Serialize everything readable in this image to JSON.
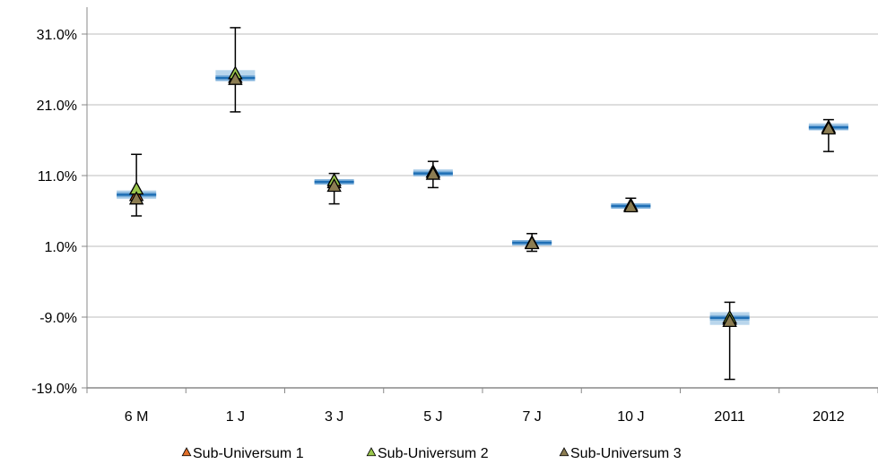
{
  "chart_data": {
    "type": "box",
    "title": "",
    "xlabel": "",
    "ylabel": "",
    "ylim": [
      -19,
      31
    ],
    "yticks": [
      -19,
      -9,
      1,
      11,
      21,
      31
    ],
    "ytick_labels": [
      "-19.0%",
      "-9.0%",
      "1.0%",
      "11.0%",
      "21.0%",
      "31.0%"
    ],
    "grid": true,
    "legend_position": "bottom",
    "categories": [
      "6 M",
      "1 J",
      "3 J",
      "5 J",
      "7 J",
      "10 J",
      "2011",
      "2012"
    ],
    "ranges": [
      {
        "min": 5.3,
        "max": 14.0,
        "box_low": 7.7,
        "box_high": 8.9,
        "median": 8.3
      },
      {
        "min": 20.0,
        "max": 31.9,
        "box_low": 24.3,
        "box_high": 25.9,
        "median": 24.8
      },
      {
        "min": 7.0,
        "max": 11.3,
        "box_low": 9.8,
        "box_high": 10.4,
        "median": 10.1
      },
      {
        "min": 9.3,
        "max": 13.0,
        "box_low": 10.9,
        "box_high": 11.9,
        "median": 11.3
      },
      {
        "min": 0.3,
        "max": 2.8,
        "box_low": 1.3,
        "box_high": 1.8,
        "median": 1.5
      },
      {
        "min": 6.1,
        "max": 7.8,
        "box_low": 6.4,
        "box_high": 7.1,
        "median": 6.7
      },
      {
        "min": -17.8,
        "max": -6.9,
        "box_low": -10.1,
        "box_high": -8.3,
        "median": -9.1
      },
      {
        "min": 14.4,
        "max": 18.9,
        "box_low": 17.4,
        "box_high": 18.4,
        "median": 17.8
      }
    ],
    "series": [
      {
        "name": "Sub-Universum 1",
        "color": "#e2702a",
        "values": [
          8.2,
          24.9,
          10.0,
          11.5,
          1.5,
          6.8,
          -9.3,
          17.8
        ]
      },
      {
        "name": "Sub-Universum 2",
        "color": "#9ac74c",
        "values": [
          9.1,
          25.4,
          10.3,
          11.5,
          1.5,
          6.8,
          -9.1,
          17.8
        ]
      },
      {
        "name": "Sub-Universum 3",
        "color": "#8c7d52",
        "values": [
          7.7,
          24.6,
          9.5,
          11.2,
          1.4,
          6.6,
          -9.6,
          17.6
        ]
      }
    ]
  },
  "colors": {
    "grid": "#d4d4d4",
    "axis": "#888888",
    "box_light": "#b9d6ec",
    "box_mid": "#7fb1db",
    "median": "#1f6fb5",
    "whisker": "#000000"
  }
}
